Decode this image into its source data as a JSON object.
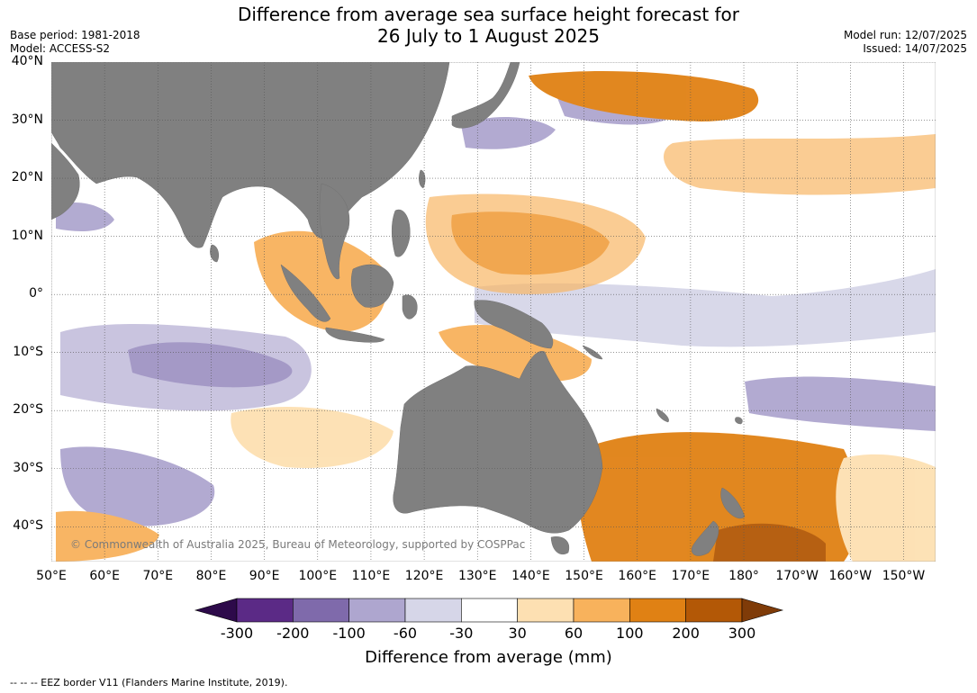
{
  "title": {
    "line1": "Difference from average sea surface height forecast for",
    "line2": "26 July to 1 August 2025"
  },
  "meta": {
    "base_period": "Base period: 1981-2018",
    "model": "Model: ACCESS-S2",
    "model_run": "Model run: 12/07/2025",
    "issued": "Issued: 14/07/2025"
  },
  "map": {
    "extent": {
      "lon_min": 50,
      "lon_max": 216,
      "lat_min": -46,
      "lat_max": 40
    },
    "land_color": "#808080",
    "ocean_color": "#ffffff",
    "graticule": "dotted",
    "lat_labels": [
      "40°N",
      "30°N",
      "20°N",
      "10°N",
      "0°",
      "10°S",
      "20°S",
      "30°S",
      "40°S"
    ],
    "lat_values": [
      40,
      30,
      20,
      10,
      0,
      -10,
      -20,
      -30,
      -40
    ],
    "lon_labels": [
      "50°E",
      "60°E",
      "70°E",
      "80°E",
      "90°E",
      "100°E",
      "110°E",
      "120°E",
      "130°E",
      "140°E",
      "150°E",
      "160°E",
      "170°E",
      "180°",
      "170°W",
      "160°W",
      "150°W"
    ],
    "lon_values": [
      50,
      60,
      70,
      80,
      90,
      100,
      110,
      120,
      130,
      140,
      150,
      160,
      170,
      180,
      190,
      200,
      210
    ],
    "copyright": "© Commonwealth of Australia 2025, Bureau of Meteorology, supported by COSPPac"
  },
  "colorbar": {
    "title": "Difference from average (mm)",
    "tick_labels": [
      "-300",
      "-200",
      "-100",
      "-60",
      "-30",
      "30",
      "60",
      "100",
      "200",
      "300"
    ],
    "colors": [
      "#2d0a4a",
      "#5b2a86",
      "#7f6aab",
      "#aea6cf",
      "#d6d6e8",
      "#ffffff",
      "#fde0b2",
      "#f8b25c",
      "#e08114",
      "#b35806",
      "#7f3b08"
    ]
  },
  "footer": "--  --  -- EEZ border V11 (Flanders Marine Institute, 2019)."
}
